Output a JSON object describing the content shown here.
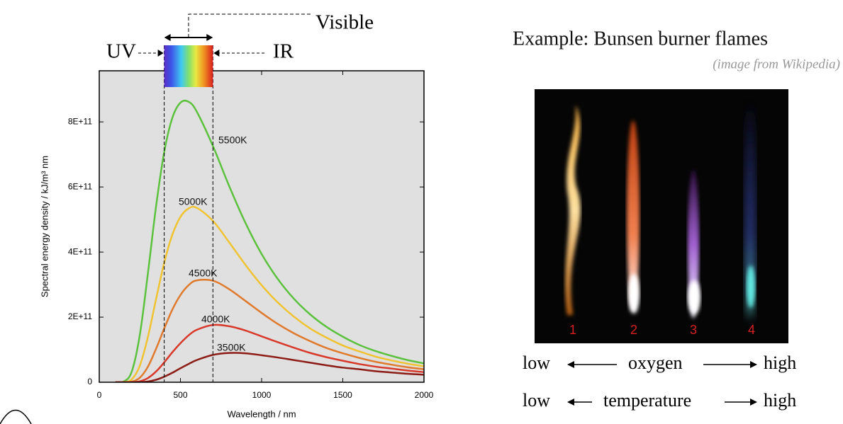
{
  "chart_data": {
    "type": "line",
    "xlabel": "Wavelength / nm",
    "ylabel": "Spectral energy density / kJ/m³ nm",
    "x": [
      100,
      150,
      200,
      250,
      300,
      350,
      400,
      450,
      500,
      550,
      600,
      700,
      800,
      900,
      1000,
      1100,
      1200,
      1300,
      1400,
      1500,
      1600,
      1700,
      1800,
      1900,
      2000
    ],
    "series": [
      {
        "name": "5500K",
        "color": "#5cc23e",
        "values": [
          0,
          1800000000.0,
          32600000000.0,
          146000000000.0,
          336000000000.0,
          541000000000.0,
          707000000000.0,
          812000000000.0,
          859000000000.0,
          862000000000.0,
          832000000000.0,
          726000000000.0,
          603000000000.0,
          490000000000.0,
          394000000000.0,
          317000000000.0,
          256000000000.0,
          208000000000.0,
          170000000000.0,
          140000000000.0,
          115000000000.0,
          96000000000.0,
          81000000000.0,
          68000000000.0,
          58000000000.0
        ]
      },
      {
        "name": "5000K",
        "color": "#f0c330",
        "values": [
          0,
          300000000.0,
          8800000000.0,
          51000000000.0,
          140000000000.0,
          256000000000.0,
          367000000000.0,
          453000000000.0,
          508000000000.0,
          534000000000.0,
          536000000000.0,
          496000000000.0,
          430000000000.0,
          361000000000.0,
          298000000000.0,
          245000000000.0,
          201000000000.0,
          165000000000.0,
          137000000000.0,
          113000000000.0,
          95000000000.0,
          79000000000.0,
          67000000000.0,
          57000000000.0,
          49000000000.0
        ]
      },
      {
        "name": "4500K",
        "color": "#e07a2c",
        "values": [
          0,
          0,
          1800000000.0,
          14000000000.0,
          48000000000.0,
          103000000000.0,
          165000000000.0,
          223000000000.0,
          268000000000.0,
          298000000000.0,
          313000000000.0,
          312000000000.0,
          286000000000.0,
          250000000000.0,
          213000000000.0,
          179000000000.0,
          150000000000.0,
          126000000000.0,
          105000000000.0,
          89000000000.0,
          75000000000.0,
          63000000000.0,
          54000000000.0,
          46000000000.0,
          40000000000.0
        ]
      },
      {
        "name": "4000K",
        "color": "#d8392b",
        "values": [
          0,
          0,
          200000000.0,
          2900000000.0,
          13000000000.0,
          33000000000.0,
          61000000000.0,
          92000000000.0,
          120000000000.0,
          144000000000.0,
          161000000000.0,
          176000000000.0,
          172000000000.0,
          159000000000.0,
          141000000000.0,
          123000000000.0,
          106000000000.0,
          90000000000.0,
          77000000000.0,
          66000000000.0,
          56000000000.0,
          48000000000.0,
          42000000000.0,
          36000000000.0,
          31000000000.0
        ]
      },
      {
        "name": "3500K",
        "color": "#8c1c16",
        "values": [
          0,
          0,
          0,
          400000000.0,
          2300000000.0,
          7600000000.0,
          17000000000.0,
          29000000000.0,
          43000000000.0,
          56000000000.0,
          68000000000.0,
          84000000000.0,
          90000000000.0,
          89000000000.0,
          83000000000.0,
          76000000000.0,
          68000000000.0,
          60000000000.0,
          52000000000.0,
          45000000000.0,
          40000000000.0,
          34000000000.0,
          30000000000.0,
          26000000000.0,
          23000000000.0
        ]
      }
    ],
    "xlim": [
      0,
      2000
    ],
    "xticks": [
      0,
      500,
      1000,
      1500,
      2000
    ],
    "ylim": [
      0,
      957000000000.0
    ],
    "yticks": [
      0,
      {
        "value": 200000000000.0,
        "label": "2E+11"
      },
      {
        "value": 400000000000.0,
        "label": "4E+11"
      },
      {
        "value": 600000000000.0,
        "label": "6E+11"
      },
      {
        "value": 800000000000.0,
        "label": "8E+11"
      }
    ],
    "visible_range": [
      400,
      700
    ],
    "annotations": {
      "visible": "Visible",
      "uv": "UV",
      "ir": "IR"
    }
  },
  "example": {
    "title": "Example: Bunsen burner flames",
    "source": "(image from Wikipedia)",
    "flame_labels": [
      "1",
      "2",
      "3",
      "4"
    ],
    "scales": [
      {
        "low": "low",
        "label": "oxygen",
        "high": "high"
      },
      {
        "low": "low",
        "label": "temperature",
        "high": "high"
      }
    ]
  }
}
